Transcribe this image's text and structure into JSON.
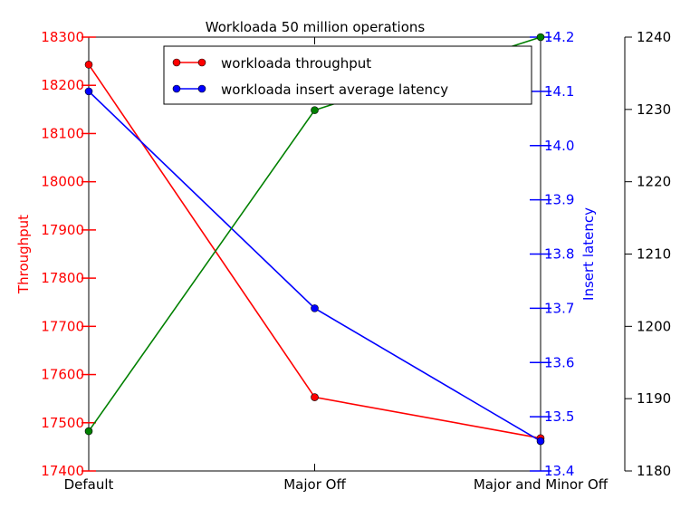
{
  "chart_data": {
    "type": "line",
    "title": "Workloada 50 million operations",
    "categories": [
      "Default",
      "Major Off",
      "Major and Minor Off"
    ],
    "axes": {
      "left": {
        "label": "Throughput",
        "color": "#ff0000",
        "ylim": [
          17400,
          18300
        ],
        "ticks": [
          "17400",
          "17500",
          "17600",
          "17700",
          "17800",
          "17900",
          "18000",
          "18100",
          "18200",
          "18300"
        ]
      },
      "middle": {
        "label": "Insert latency",
        "color": "#0000ff",
        "ylim": [
          13.4,
          14.2
        ],
        "ticks": [
          "13.4",
          "13.5",
          "13.6",
          "13.7",
          "13.8",
          "13.9",
          "14.0",
          "14.1",
          "14.2"
        ]
      },
      "right": {
        "label": "",
        "color": "#000000",
        "ylim": [
          1180,
          1240
        ],
        "ticks": [
          "1180",
          "1190",
          "1200",
          "1210",
          "1220",
          "1230",
          "1240"
        ]
      }
    },
    "series": [
      {
        "name": "workloada throughput",
        "color": "#ff0000",
        "axis": "left",
        "values": [
          18243,
          17553,
          17468
        ]
      },
      {
        "name": "workloada insert average latency",
        "color": "#0000ff",
        "axis": "middle",
        "values": [
          14.1,
          13.7,
          13.455
        ]
      },
      {
        "name": "",
        "color": "#008000",
        "axis": "right",
        "values": [
          1185.5,
          1229.9,
          1240
        ]
      }
    ],
    "legend": {
      "placement": "top-center",
      "entries": [
        "workloada throughput",
        "workloada insert average latency"
      ]
    },
    "grid": false
  }
}
